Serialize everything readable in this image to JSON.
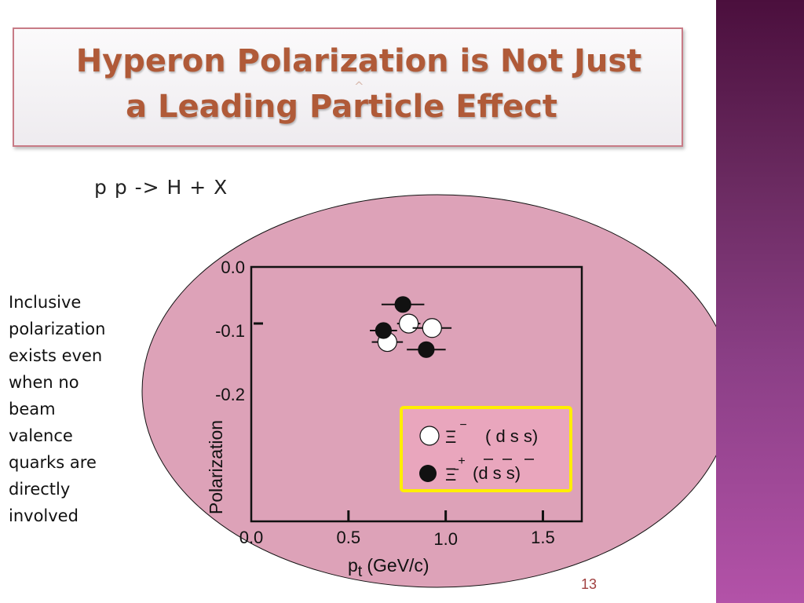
{
  "slide": {
    "title_line1": "Hyperon Polarization is Not Just",
    "title_line2": "a Leading Particle Effect",
    "title_caret": "^",
    "reaction": "p p -> H + X",
    "side_text": [
      "Inclusive",
      "polarization",
      "exists even",
      "when no",
      "beam",
      "valence",
      "quarks are",
      "directly",
      "involved"
    ],
    "page_number": "13"
  },
  "colors": {
    "title": "#b05a38",
    "ellipse_fill": "#dda2b8",
    "legend_border": "#ffee00",
    "side_band": "#7a3572"
  },
  "chart_data": {
    "type": "scatter",
    "xlabel_main": "p",
    "xlabel_sub": "t",
    "xlabel_unit": "(GeV/c)",
    "ylabel": "Polarization",
    "x_ticks": [
      {
        "value": 0.0,
        "label": "0.0"
      },
      {
        "value": 0.5,
        "label": "0.5"
      },
      {
        "value": 1.0,
        "label": "1.0"
      },
      {
        "value": 1.5,
        "label": "1.5"
      }
    ],
    "y_ticks": [
      {
        "value": 0.0,
        "label": "0.0"
      },
      {
        "value": -0.1,
        "label": "-0.1"
      },
      {
        "value": -0.2,
        "label": "-0.2"
      }
    ],
    "xlim": [
      0.0,
      1.7
    ],
    "ylim": [
      -0.4,
      0.0
    ],
    "legend_placement": "bottom-right",
    "series": [
      {
        "name": "Ξ⁻ ( d s s)",
        "symbol_main": "Ξ",
        "symbol_sup": "−",
        "quarks": "( d s s)",
        "marker": "open-circle",
        "points": [
          {
            "x": 0.81,
            "y": -0.089,
            "xerr": 0.06
          },
          {
            "x": 0.93,
            "y": -0.096,
            "xerr": 0.1
          },
          {
            "x": 0.7,
            "y": -0.118,
            "xerr": 0.08
          }
        ]
      },
      {
        "name": "Ξ̄⁺ (d̄ s̄ s̄)",
        "symbol_main": "Ξ̄",
        "symbol_sup": "+",
        "quarks": "(d s  s)",
        "marker": "filled-circle",
        "points": [
          {
            "x": 0.78,
            "y": -0.059,
            "xerr": 0.11
          },
          {
            "x": 0.68,
            "y": -0.1,
            "xerr": 0.07
          },
          {
            "x": 0.9,
            "y": -0.13,
            "xerr": 0.1
          }
        ]
      }
    ]
  }
}
